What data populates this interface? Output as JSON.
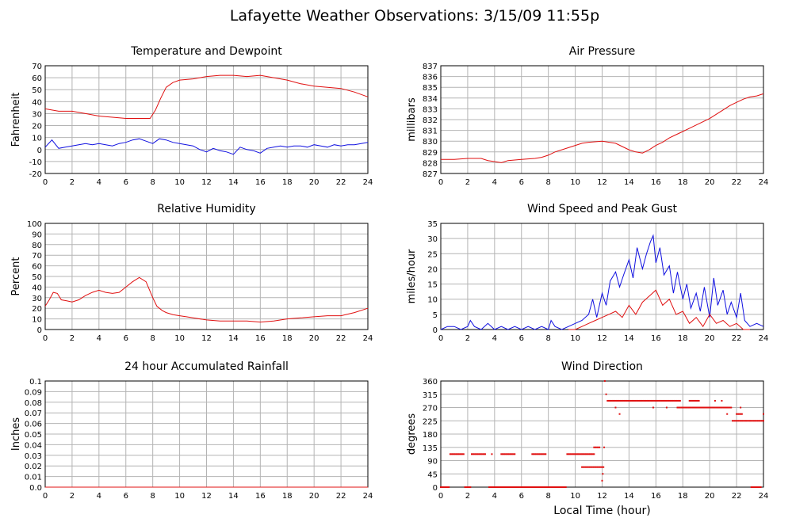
{
  "page_title": "Lafayette Weather Observations: 3/15/09 11:55p",
  "colors": {
    "red": "#e01010",
    "blue": "#1010e0",
    "grid": "#b4b4b4"
  },
  "chart_data": [
    {
      "id": "temp",
      "type": "line",
      "title": "Temperature and Dewpoint",
      "ylabel": "Fahrenheit",
      "xlabel": "",
      "xlim": [
        0,
        24
      ],
      "ylim": [
        -20,
        70
      ],
      "xticks": [
        0,
        2,
        4,
        6,
        8,
        10,
        12,
        14,
        16,
        18,
        20,
        22,
        24
      ],
      "yticks": [
        -20,
        -10,
        0,
        10,
        20,
        30,
        40,
        50,
        60,
        70
      ],
      "series": [
        {
          "color": "#e01010",
          "x": [
            0,
            1,
            2,
            3,
            4,
            5,
            6,
            7,
            7.8,
            8.2,
            8.6,
            9,
            9.5,
            10,
            11,
            12,
            13,
            14,
            15,
            16,
            17,
            18,
            19,
            20,
            21,
            22,
            23,
            24
          ],
          "y": [
            34,
            32,
            32,
            30,
            28,
            27,
            26,
            26,
            26,
            33,
            43,
            52,
            56,
            58,
            59,
            61,
            62,
            62,
            61,
            62,
            60,
            58,
            55,
            53,
            52,
            51,
            48,
            44
          ]
        },
        {
          "color": "#1010e0",
          "x": [
            0,
            0.5,
            1,
            1.5,
            2,
            2.5,
            3,
            3.5,
            4,
            4.5,
            5,
            5.5,
            6,
            6.5,
            7,
            7.5,
            8,
            8.5,
            9,
            9.5,
            10,
            10.5,
            11,
            11.5,
            12,
            12.5,
            13,
            13.5,
            14,
            14.5,
            15,
            15.5,
            16,
            16.5,
            17,
            17.5,
            18,
            18.5,
            19,
            19.5,
            20,
            20.5,
            21,
            21.5,
            22,
            22.5,
            23,
            23.5,
            24
          ],
          "y": [
            2,
            8,
            1,
            2,
            3,
            4,
            5,
            4,
            5,
            4,
            3,
            5,
            6,
            8,
            9,
            7,
            5,
            9,
            8,
            6,
            5,
            4,
            3,
            0,
            -2,
            1,
            -1,
            -2,
            -4,
            2,
            0,
            -1,
            -3,
            1,
            2,
            3,
            2,
            3,
            3,
            2,
            4,
            3,
            2,
            4,
            3,
            4,
            4,
            5,
            6
          ]
        }
      ]
    },
    {
      "id": "pressure",
      "type": "line",
      "title": "Air Pressure",
      "ylabel": "millibars",
      "xlabel": "",
      "xlim": [
        0,
        24
      ],
      "ylim": [
        827,
        837
      ],
      "xticks": [
        0,
        2,
        4,
        6,
        8,
        10,
        12,
        14,
        16,
        18,
        20,
        22,
        24
      ],
      "yticks": [
        827,
        828,
        829,
        830,
        831,
        832,
        833,
        834,
        835,
        836,
        837
      ],
      "series": [
        {
          "color": "#e01010",
          "x": [
            0,
            1,
            2,
            3,
            3.5,
            4,
            4.5,
            5,
            6,
            7,
            7.5,
            8,
            8.5,
            9,
            9.5,
            10,
            10.5,
            11,
            12,
            13,
            13.5,
            14,
            14.5,
            15,
            15.5,
            16,
            16.5,
            17,
            17.5,
            18,
            18.5,
            19,
            19.5,
            20,
            20.5,
            21,
            21.5,
            22,
            22.5,
            23,
            23.5,
            24
          ],
          "y": [
            828.3,
            828.3,
            828.4,
            828.4,
            828.2,
            828.1,
            828.0,
            828.2,
            828.3,
            828.4,
            828.5,
            828.7,
            829.0,
            829.2,
            829.4,
            829.6,
            829.8,
            829.9,
            830.0,
            829.8,
            829.5,
            829.2,
            829.0,
            828.9,
            829.2,
            829.6,
            829.9,
            830.3,
            830.6,
            830.9,
            831.2,
            831.5,
            831.8,
            832.1,
            832.5,
            832.9,
            833.3,
            833.6,
            833.9,
            834.1,
            834.2,
            834.4
          ]
        }
      ]
    },
    {
      "id": "humidity",
      "type": "line",
      "title": "Relative Humidity",
      "ylabel": "Percent",
      "xlabel": "",
      "xlim": [
        0,
        24
      ],
      "ylim": [
        0,
        100
      ],
      "xticks": [
        0,
        2,
        4,
        6,
        8,
        10,
        12,
        14,
        16,
        18,
        20,
        22,
        24
      ],
      "yticks": [
        0,
        10,
        20,
        30,
        40,
        50,
        60,
        70,
        80,
        90,
        100
      ],
      "series": [
        {
          "color": "#e01010",
          "x": [
            0,
            0.3,
            0.6,
            0.9,
            1.2,
            1.6,
            2,
            2.5,
            3,
            3.5,
            4,
            4.5,
            5,
            5.5,
            6,
            6.5,
            7,
            7.5,
            8,
            8.3,
            8.7,
            9,
            9.5,
            10,
            10.5,
            11,
            12,
            13,
            14,
            15,
            16,
            17,
            18,
            19,
            20,
            21,
            22,
            23,
            24
          ],
          "y": [
            22,
            28,
            35,
            34,
            28,
            27,
            26,
            28,
            32,
            35,
            37,
            35,
            34,
            35,
            40,
            45,
            49,
            45,
            30,
            22,
            18,
            16,
            14,
            13,
            12,
            11,
            9,
            8,
            8,
            8,
            7,
            8,
            10,
            11,
            12,
            13,
            13,
            16,
            20
          ]
        }
      ]
    },
    {
      "id": "wind",
      "type": "line",
      "title": "Wind Speed and Peak Gust",
      "ylabel": "miles/hour",
      "xlabel": "",
      "xlim": [
        0,
        24
      ],
      "ylim": [
        0,
        35
      ],
      "xticks": [
        0,
        2,
        4,
        6,
        8,
        10,
        12,
        14,
        16,
        18,
        20,
        22,
        24
      ],
      "yticks": [
        0,
        5,
        10,
        15,
        20,
        25,
        30,
        35
      ],
      "series": [
        {
          "color": "#1010e0",
          "x": [
            0,
            0.5,
            1,
            1.5,
            2,
            2.2,
            2.5,
            3,
            3.5,
            4,
            4.5,
            5,
            5.5,
            6,
            6.5,
            7,
            7.5,
            8,
            8.2,
            8.5,
            9,
            9.5,
            10,
            10.5,
            11,
            11.3,
            11.6,
            12,
            12.3,
            12.6,
            13,
            13.3,
            13.6,
            14,
            14.3,
            14.6,
            15,
            15.3,
            15.6,
            15.8,
            16,
            16.3,
            16.6,
            17,
            17.3,
            17.6,
            18,
            18.3,
            18.6,
            19,
            19.3,
            19.6,
            20,
            20.3,
            20.6,
            21,
            21.3,
            21.6,
            22,
            22.3,
            22.6,
            23,
            23.5,
            24
          ],
          "y": [
            0,
            1,
            1,
            0,
            1,
            3,
            1,
            0,
            2,
            0,
            1,
            0,
            1,
            0,
            1,
            0,
            1,
            0,
            3,
            1,
            0,
            1,
            2,
            3,
            5,
            10,
            4,
            12,
            8,
            16,
            19,
            14,
            18,
            23,
            17,
            27,
            20,
            25,
            29,
            31,
            22,
            27,
            18,
            21,
            12,
            19,
            10,
            15,
            7,
            12,
            6,
            14,
            4,
            17,
            8,
            13,
            5,
            9,
            4,
            12,
            3,
            1,
            2,
            1
          ]
        },
        {
          "color": "#e01010",
          "x": [
            9.5,
            10,
            10.5,
            11,
            11.5,
            12,
            12.5,
            13,
            13.5,
            14,
            14.5,
            15,
            15.5,
            16,
            16.5,
            17,
            17.5,
            18,
            18.5,
            19,
            19.5,
            20,
            20.5,
            21,
            21.5,
            22,
            22.5,
            23
          ],
          "y": [
            0,
            0,
            1,
            2,
            3,
            4,
            5,
            6,
            4,
            8,
            5,
            9,
            11,
            13,
            8,
            10,
            5,
            6,
            2,
            4,
            1,
            5,
            2,
            3,
            1,
            2,
            0,
            0
          ]
        }
      ]
    },
    {
      "id": "rain",
      "type": "line",
      "title": "24 hour Accumulated Rainfall",
      "ylabel": "Inches",
      "xlabel": "",
      "xlim": [
        0,
        24
      ],
      "ylim": [
        0,
        0.1
      ],
      "xticks": [
        0,
        2,
        4,
        6,
        8,
        10,
        12,
        14,
        16,
        18,
        20,
        22,
        24
      ],
      "yticks": [
        0.0,
        0.01,
        0.02,
        0.03,
        0.04,
        0.05,
        0.06,
        0.07,
        0.08,
        0.09,
        0.1
      ],
      "ytick_labels": [
        "0.0",
        "0.01",
        "0.02",
        "0.03",
        "0.04",
        "0.05",
        "0.06",
        "0.07",
        "0.08",
        "0.09",
        "0.1"
      ],
      "series": [
        {
          "color": "#e01010",
          "x": [
            0,
            24
          ],
          "y": [
            0,
            0
          ]
        }
      ]
    },
    {
      "id": "direction",
      "type": "scatter",
      "title": "Wind Direction",
      "ylabel": "degrees",
      "xlabel": "Local Time (hour)",
      "xlim": [
        0,
        24
      ],
      "ylim": [
        0,
        360
      ],
      "xticks": [
        0,
        2,
        4,
        6,
        8,
        10,
        12,
        14,
        16,
        18,
        20,
        22,
        24
      ],
      "yticks": [
        0,
        45,
        90,
        135,
        180,
        225,
        270,
        315,
        360
      ],
      "segments": [
        {
          "y": 0,
          "x0": 0.0,
          "x1": 0.6
        },
        {
          "y": 112,
          "x0": 0.7,
          "x1": 1.7
        },
        {
          "y": 0,
          "x0": 1.8,
          "x1": 2.2
        },
        {
          "y": 112,
          "x0": 2.3,
          "x1": 3.3
        },
        {
          "y": 0,
          "x0": 3.6,
          "x1": 6.0
        },
        {
          "y": 112,
          "x0": 4.5,
          "x1": 5.5
        },
        {
          "y": 0,
          "x0": 6.0,
          "x1": 8.5
        },
        {
          "y": 112,
          "x0": 6.8,
          "x1": 7.8
        },
        {
          "y": 0,
          "x0": 8.5,
          "x1": 9.3
        },
        {
          "y": 112,
          "x0": 9.4,
          "x1": 10.5
        },
        {
          "y": 68,
          "x0": 10.5,
          "x1": 12.1
        },
        {
          "y": 112,
          "x0": 10.6,
          "x1": 11.4
        },
        {
          "y": 135,
          "x0": 11.4,
          "x1": 11.8
        },
        {
          "y": 293,
          "x0": 12.4,
          "x1": 17.8
        },
        {
          "y": 270,
          "x0": 17.6,
          "x1": 20.8
        },
        {
          "y": 293,
          "x0": 18.5,
          "x1": 19.2
        },
        {
          "y": 270,
          "x0": 20.8,
          "x1": 21.6
        },
        {
          "y": 225,
          "x0": 21.7,
          "x1": 24.0
        },
        {
          "y": 248,
          "x0": 22.0,
          "x1": 22.4
        },
        {
          "y": 0,
          "x0": 23.1,
          "x1": 23.8
        }
      ],
      "points": [
        {
          "x": 3.8,
          "y": 112
        },
        {
          "x": 12.0,
          "y": 22
        },
        {
          "x": 12.05,
          "y": 45
        },
        {
          "x": 12.15,
          "y": 135
        },
        {
          "x": 12.2,
          "y": 360
        },
        {
          "x": 12.3,
          "y": 315
        },
        {
          "x": 13.0,
          "y": 270
        },
        {
          "x": 13.3,
          "y": 248
        },
        {
          "x": 15.8,
          "y": 270
        },
        {
          "x": 16.8,
          "y": 270
        },
        {
          "x": 20.4,
          "y": 293
        },
        {
          "x": 20.9,
          "y": 293
        },
        {
          "x": 21.3,
          "y": 248
        },
        {
          "x": 22.3,
          "y": 270
        },
        {
          "x": 24.0,
          "y": 248
        }
      ]
    }
  ]
}
